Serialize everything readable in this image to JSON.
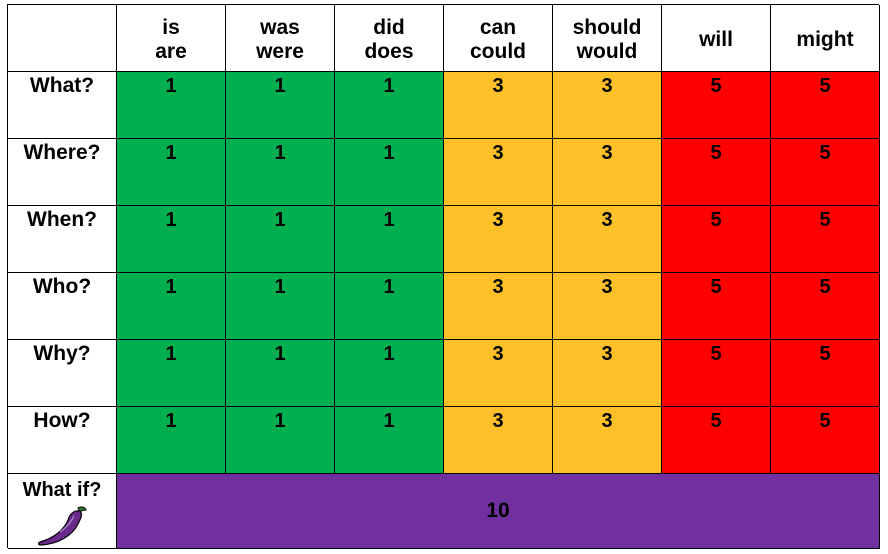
{
  "header": {
    "col1": [
      "is",
      "are"
    ],
    "col2": [
      "was",
      "were"
    ],
    "col3": [
      "did",
      "does"
    ],
    "col4": [
      "can",
      "could"
    ],
    "col5": [
      "should",
      "would"
    ],
    "col6": [
      "will"
    ],
    "col7": [
      "might"
    ]
  },
  "rows": [
    {
      "label": "What?",
      "values": [
        "1",
        "1",
        "1",
        "3",
        "3",
        "5",
        "5"
      ]
    },
    {
      "label": "Where?",
      "values": [
        "1",
        "1",
        "1",
        "3",
        "3",
        "5",
        "5"
      ]
    },
    {
      "label": "When?",
      "values": [
        "1",
        "1",
        "1",
        "3",
        "3",
        "5",
        "5"
      ]
    },
    {
      "label": "Who?",
      "values": [
        "1",
        "1",
        "1",
        "3",
        "3",
        "5",
        "5"
      ]
    },
    {
      "label": "Why?",
      "values": [
        "1",
        "1",
        "1",
        "3",
        "3",
        "5",
        "5"
      ]
    },
    {
      "label": "How?",
      "values": [
        "1",
        "1",
        "1",
        "3",
        "3",
        "5",
        "5"
      ]
    }
  ],
  "bonus": {
    "label": "What if?",
    "value": "10",
    "icon": "chili-pepper-icon"
  },
  "colors": {
    "green": "#00b050",
    "yellow": "#ffc02a",
    "red": "#ff0000",
    "purple": "#7030a0"
  }
}
